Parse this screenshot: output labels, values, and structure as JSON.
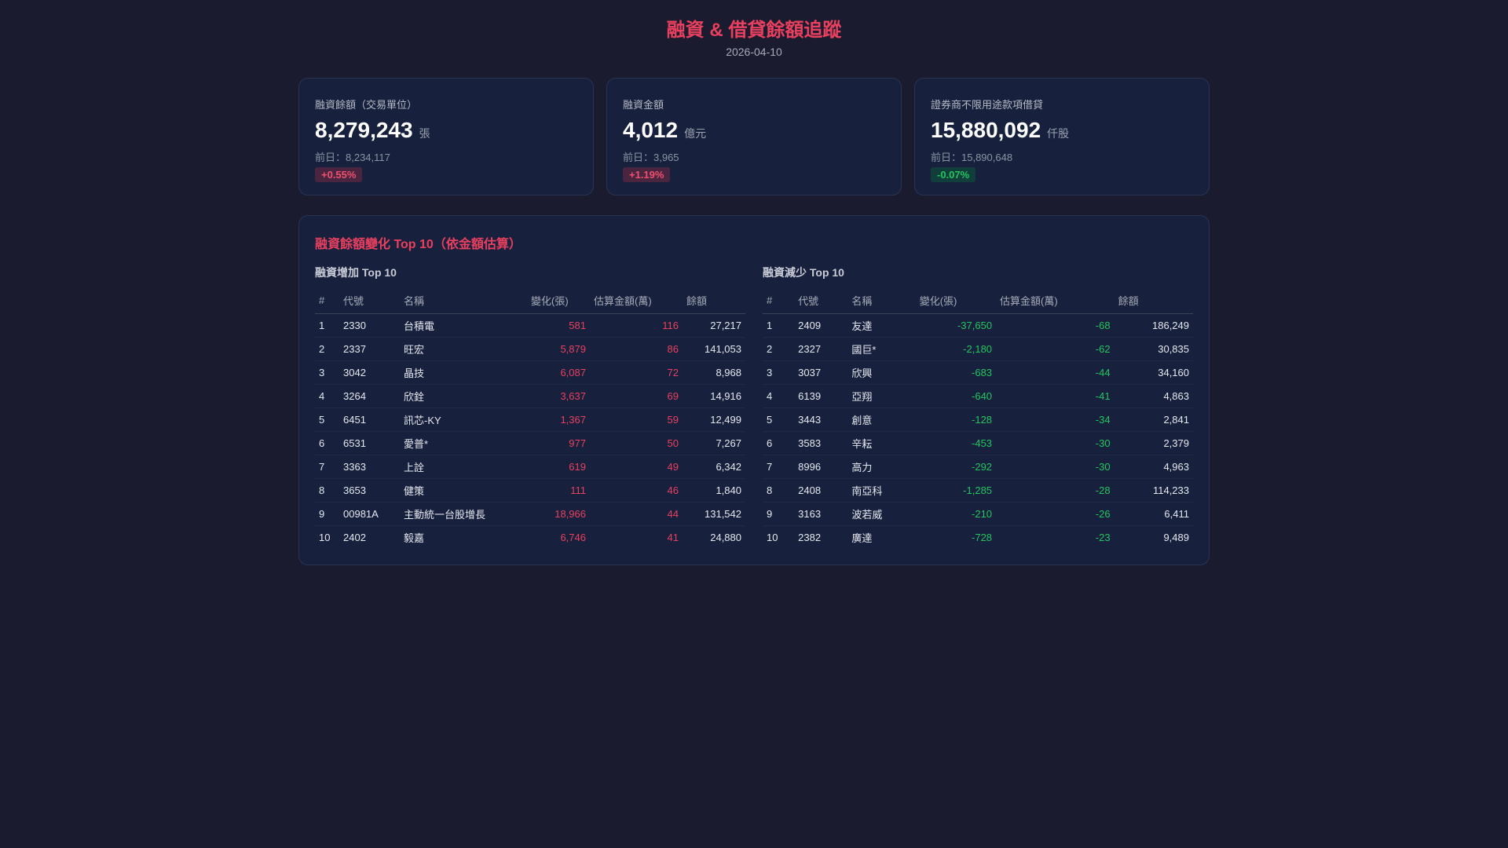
{
  "header": {
    "title": "融資 & 借貸餘額追蹤",
    "date": "2026-04-10"
  },
  "cards": [
    {
      "label": "融資餘額（交易單位）",
      "value": "8,279,243",
      "unit": "張",
      "prev": "前日：8,234,117",
      "change": "+0.55%",
      "direction": "up"
    },
    {
      "label": "融資金額",
      "value": "4,012",
      "unit": "億元",
      "prev": "前日：3,965",
      "change": "+1.19%",
      "direction": "up"
    },
    {
      "label": "證券商不限用途款項借貸",
      "value": "15,880,092",
      "unit": "仟股",
      "prev": "前日：15,890,648",
      "change": "-0.07%",
      "direction": "down"
    }
  ],
  "panel": {
    "title": "融資餘額變化 Top 10（依金額估算）",
    "columns": [
      "#",
      "代號",
      "名稱",
      "變化(張)",
      "估算金額(萬)",
      "餘額"
    ],
    "increase": {
      "title": "融資增加 Top 10",
      "rows": [
        [
          "1",
          "2330",
          "台積電",
          "581",
          "116",
          "27,217"
        ],
        [
          "2",
          "2337",
          "旺宏",
          "5,879",
          "86",
          "141,053"
        ],
        [
          "3",
          "3042",
          "晶技",
          "6,087",
          "72",
          "8,968"
        ],
        [
          "4",
          "3264",
          "欣銓",
          "3,637",
          "69",
          "14,916"
        ],
        [
          "5",
          "6451",
          "訊芯-KY",
          "1,367",
          "59",
          "12,499"
        ],
        [
          "6",
          "6531",
          "愛普*",
          "977",
          "50",
          "7,267"
        ],
        [
          "7",
          "3363",
          "上詮",
          "619",
          "49",
          "6,342"
        ],
        [
          "8",
          "3653",
          "健策",
          "111",
          "46",
          "1,840"
        ],
        [
          "9",
          "00981A",
          "主動統一台股增長",
          "18,966",
          "44",
          "131,542"
        ],
        [
          "10",
          "2402",
          "毅嘉",
          "6,746",
          "41",
          "24,880"
        ]
      ]
    },
    "decrease": {
      "title": "融資減少 Top 10",
      "rows": [
        [
          "1",
          "2409",
          "友達",
          "-37,650",
          "-68",
          "186,249"
        ],
        [
          "2",
          "2327",
          "國巨*",
          "-2,180",
          "-62",
          "30,835"
        ],
        [
          "3",
          "3037",
          "欣興",
          "-683",
          "-44",
          "34,160"
        ],
        [
          "4",
          "6139",
          "亞翔",
          "-640",
          "-41",
          "4,863"
        ],
        [
          "5",
          "3443",
          "創意",
          "-128",
          "-34",
          "2,841"
        ],
        [
          "6",
          "3583",
          "辛耘",
          "-453",
          "-30",
          "2,379"
        ],
        [
          "7",
          "8996",
          "高力",
          "-292",
          "-30",
          "4,963"
        ],
        [
          "8",
          "2408",
          "南亞科",
          "-1,285",
          "-28",
          "114,233"
        ],
        [
          "9",
          "3163",
          "波若威",
          "-210",
          "-26",
          "6,411"
        ],
        [
          "10",
          "2382",
          "廣達",
          "-728",
          "-23",
          "9,489"
        ]
      ]
    }
  },
  "colors": {
    "up": "#e8405e",
    "down": "#22c55e",
    "background": "#1a1b2e",
    "card": "#17213d"
  }
}
